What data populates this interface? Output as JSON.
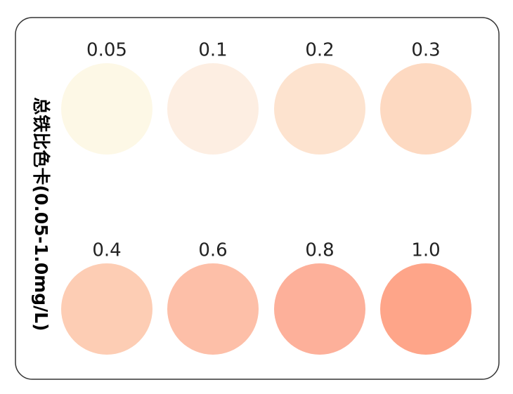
{
  "title": "总铁比色卡(0.05-1.0mg/L)",
  "swatches": [
    {
      "label": "0.05",
      "color": "#fdf8e6"
    },
    {
      "label": "0.1",
      "color": "#fdeee2"
    },
    {
      "label": "0.2",
      "color": "#fde3cf"
    },
    {
      "label": "0.3",
      "color": "#fdd9c1"
    },
    {
      "label": "0.4",
      "color": "#fdcdb4"
    },
    {
      "label": "0.6",
      "color": "#fdbfa8"
    },
    {
      "label": "0.8",
      "color": "#fdb09a"
    },
    {
      "label": "1.0",
      "color": "#fea589"
    }
  ]
}
